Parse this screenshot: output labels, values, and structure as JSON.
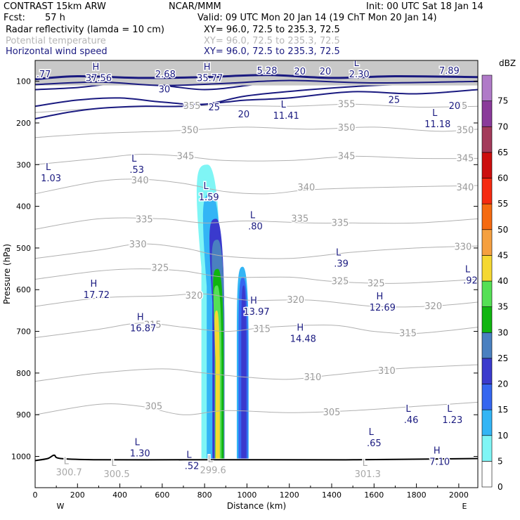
{
  "header": {
    "model": "CONTRAST 15km ARW",
    "center": "NCAR/MMM",
    "init": "Init: 00 UTC Sat 18 Jan 14",
    "fcst_label": "Fcst:",
    "fcst_value": "57 h",
    "valid": "Valid: 09 UTC Mon 20 Jan 14 (19 ChT Mon 20 Jan 14)",
    "fields": [
      {
        "name": "Radar reflectivity (lamda = 10 cm)",
        "xy": "XY=   96.0, 72.5 to 235.3, 72.5",
        "color": "#000000"
      },
      {
        "name": "Potential temperature",
        "xy": "XY=   96.0, 72.5 to 235.3, 72.5",
        "color": "#b5b5b5"
      },
      {
        "name": "Horizontal wind speed",
        "xy": "XY=   96.0, 72.5 to 235.3, 72.5",
        "color": "#1a1a80"
      }
    ]
  },
  "chart_data": {
    "type": "heatmap",
    "xlabel": "Distance (km)",
    "ylabel": "Pressure (hPa)",
    "xlim": [
      0,
      2090
    ],
    "ylim": [
      1075,
      50
    ],
    "x_ticks": [
      0,
      200,
      400,
      600,
      800,
      1000,
      1200,
      1400,
      1600,
      1800,
      2000
    ],
    "y_ticks": [
      100,
      200,
      300,
      400,
      500,
      600,
      700,
      800,
      900,
      1000
    ],
    "x_end_labels": {
      "left": "W",
      "right": "E"
    },
    "colorbar": {
      "units": "dBZ",
      "levels": [
        0,
        5,
        10,
        15,
        20,
        25,
        30,
        35,
        40,
        45,
        50,
        55,
        60,
        65,
        70,
        75
      ],
      "colors": [
        "#ffffff",
        "#7ff5f5",
        "#33b5f5",
        "#3566f0",
        "#3a3acd",
        "#4a80c0",
        "#10b510",
        "#55e055",
        "#f5d832",
        "#f5a040",
        "#f56a10",
        "#f52a10",
        "#cc0e0e",
        "#a33a5a",
        "#8a3a9a",
        "#b07ac8"
      ]
    },
    "theta_contours": [
      {
        "label": "305",
        "points": [
          [
            0,
            900
          ],
          [
            300,
            875
          ],
          [
            500,
            880
          ],
          [
            700,
            900
          ],
          [
            900,
            890
          ],
          [
            1200,
            895
          ],
          [
            1500,
            890
          ],
          [
            1800,
            880
          ],
          [
            2090,
            870
          ]
        ]
      },
      {
        "label": "310",
        "points": [
          [
            0,
            820
          ],
          [
            300,
            800
          ],
          [
            600,
            790
          ],
          [
            800,
            800
          ],
          [
            1000,
            810
          ],
          [
            1200,
            815
          ],
          [
            1400,
            805
          ],
          [
            1700,
            790
          ],
          [
            2090,
            780
          ]
        ]
      },
      {
        "label": "315",
        "points": [
          [
            0,
            715
          ],
          [
            300,
            695
          ],
          [
            500,
            680
          ],
          [
            700,
            690
          ],
          [
            900,
            700
          ],
          [
            1100,
            690
          ],
          [
            1400,
            685
          ],
          [
            1600,
            700
          ],
          [
            1800,
            705
          ],
          [
            2090,
            690
          ]
        ]
      },
      {
        "label": "320",
        "points": [
          [
            0,
            640
          ],
          [
            300,
            620
          ],
          [
            600,
            615
          ],
          [
            800,
            610
          ],
          [
            1000,
            625
          ],
          [
            1300,
            625
          ],
          [
            1600,
            640
          ],
          [
            1850,
            640
          ],
          [
            2090,
            630
          ]
        ]
      },
      {
        "label": "325",
        "points": [
          [
            0,
            575
          ],
          [
            300,
            555
          ],
          [
            500,
            550
          ],
          [
            700,
            555
          ],
          [
            900,
            570
          ],
          [
            1200,
            570
          ],
          [
            1400,
            580
          ],
          [
            1700,
            585
          ],
          [
            2090,
            575
          ]
        ]
      },
      {
        "label": "330",
        "points": [
          [
            0,
            525
          ],
          [
            300,
            505
          ],
          [
            500,
            490
          ],
          [
            700,
            500
          ],
          [
            900,
            520
          ],
          [
            1200,
            525
          ],
          [
            1500,
            510
          ],
          [
            1800,
            500
          ],
          [
            2090,
            495
          ]
        ]
      },
      {
        "label": "335",
        "points": [
          [
            0,
            455
          ],
          [
            300,
            430
          ],
          [
            600,
            430
          ],
          [
            800,
            440
          ],
          [
            1000,
            435
          ],
          [
            1300,
            440
          ],
          [
            1500,
            440
          ],
          [
            1800,
            440
          ],
          [
            2090,
            430
          ]
        ]
      },
      {
        "label": "340",
        "points": [
          [
            0,
            370
          ],
          [
            300,
            340
          ],
          [
            500,
            335
          ],
          [
            700,
            345
          ],
          [
            900,
            365
          ],
          [
            1100,
            370
          ],
          [
            1300,
            360
          ],
          [
            1600,
            355
          ],
          [
            2090,
            350
          ]
        ]
      },
      {
        "label": "345",
        "points": [
          [
            0,
            300
          ],
          [
            300,
            285
          ],
          [
            500,
            275
          ],
          [
            700,
            280
          ],
          [
            900,
            290
          ],
          [
            1200,
            290
          ],
          [
            1500,
            280
          ],
          [
            1800,
            285
          ],
          [
            2090,
            285
          ]
        ]
      },
      {
        "label": "350",
        "points": [
          [
            0,
            235
          ],
          [
            300,
            225
          ],
          [
            600,
            220
          ],
          [
            800,
            215
          ],
          [
            1000,
            210
          ],
          [
            1300,
            215
          ],
          [
            1600,
            210
          ],
          [
            1900,
            220
          ],
          [
            2090,
            215
          ]
        ]
      },
      {
        "label": "355",
        "points": [
          [
            0,
            175
          ],
          [
            300,
            165
          ],
          [
            600,
            160
          ],
          [
            900,
            158
          ],
          [
            1200,
            160
          ],
          [
            1500,
            155
          ],
          [
            1800,
            162
          ],
          [
            2090,
            160
          ]
        ]
      }
    ],
    "theta_labels": [
      {
        "text": "305",
        "x": 560,
        "y": 880
      },
      {
        "text": "305",
        "x": 1400,
        "y": 895
      },
      {
        "text": "310",
        "x": 1310,
        "y": 810
      },
      {
        "text": "310",
        "x": 1660,
        "y": 795
      },
      {
        "text": "315",
        "x": 555,
        "y": 685
      },
      {
        "text": "315",
        "x": 1070,
        "y": 695
      },
      {
        "text": "315",
        "x": 1760,
        "y": 705
      },
      {
        "text": "320",
        "x": 750,
        "y": 615
      },
      {
        "text": "320",
        "x": 1230,
        "y": 625
      },
      {
        "text": "320",
        "x": 1880,
        "y": 640
      },
      {
        "text": "325",
        "x": 590,
        "y": 548
      },
      {
        "text": "325",
        "x": 1440,
        "y": 580
      },
      {
        "text": "325",
        "x": 1610,
        "y": 585
      },
      {
        "text": "330",
        "x": 485,
        "y": 492
      },
      {
        "text": "330",
        "x": 2020,
        "y": 498
      },
      {
        "text": "335",
        "x": 515,
        "y": 432
      },
      {
        "text": "335",
        "x": 1250,
        "y": 430
      },
      {
        "text": "335",
        "x": 1440,
        "y": 440
      },
      {
        "text": "340",
        "x": 495,
        "y": 338
      },
      {
        "text": "340",
        "x": 1280,
        "y": 355
      },
      {
        "text": "340",
        "x": 2030,
        "y": 355
      },
      {
        "text": "345",
        "x": 710,
        "y": 280
      },
      {
        "text": "345",
        "x": 1470,
        "y": 280
      },
      {
        "text": "345",
        "x": 2030,
        "y": 285
      },
      {
        "text": "350",
        "x": 730,
        "y": 218
      },
      {
        "text": "350",
        "x": 1470,
        "y": 212
      },
      {
        "text": "350",
        "x": 2030,
        "y": 218
      },
      {
        "text": "355",
        "x": 740,
        "y": 160
      },
      {
        "text": "355",
        "x": 1470,
        "y": 155
      },
      {
        "text": "355",
        "x": 2000,
        "y": 160
      }
    ],
    "wind_contours": [
      {
        "label": "20",
        "points": [
          [
            0,
            190
          ],
          [
            150,
            175
          ],
          [
            300,
            165
          ],
          [
            500,
            160
          ],
          [
            700,
            160
          ],
          [
            900,
            150
          ],
          [
            1000,
            145
          ],
          [
            1200,
            140
          ],
          [
            1500,
            125
          ],
          [
            1800,
            130
          ],
          [
            2090,
            120
          ]
        ]
      },
      {
        "label": "25",
        "points": [
          [
            0,
            160
          ],
          [
            200,
            145
          ],
          [
            400,
            140
          ],
          [
            600,
            150
          ],
          [
            800,
            155
          ],
          [
            1000,
            135
          ],
          [
            1300,
            120
          ],
          [
            1600,
            110
          ],
          [
            1900,
            105
          ],
          [
            2090,
            100
          ]
        ]
      },
      {
        "label": "30",
        "points": [
          [
            0,
            120
          ],
          [
            200,
            115
          ],
          [
            400,
            105
          ],
          [
            600,
            110
          ],
          [
            800,
            120
          ],
          [
            1000,
            110
          ],
          [
            1200,
            95
          ],
          [
            1500,
            90
          ],
          [
            1800,
            85
          ],
          [
            2090,
            80
          ]
        ]
      }
    ],
    "wind_labels": [
      {
        "text": "20",
        "x": 985,
        "y": 180
      },
      {
        "text": "25",
        "x": 845,
        "y": 163
      },
      {
        "text": "25",
        "x": 1695,
        "y": 145
      },
      {
        "text": "20",
        "x": 1980,
        "y": 160
      },
      {
        "text": "30",
        "x": 610,
        "y": 120
      },
      {
        "text": "20",
        "x": 1250,
        "y": 77
      },
      {
        "text": "20",
        "x": 1370,
        "y": 77
      }
    ],
    "extrema": [
      {
        "kind": "L",
        "value": "1.03",
        "x": 75,
        "y": 330,
        "color": "blue"
      },
      {
        "kind": "L",
        "value": ".53",
        "x": 480,
        "y": 310,
        "color": "blue"
      },
      {
        "kind": "L",
        "value": "1.59",
        "x": 820,
        "y": 375,
        "color": "blue"
      },
      {
        "kind": "L",
        "value": ".80",
        "x": 1040,
        "y": 445,
        "color": "blue"
      },
      {
        "kind": "L",
        "value": ".39",
        "x": 1445,
        "y": 535,
        "color": "blue"
      },
      {
        "kind": "L",
        "value": ".92",
        "x": 2055,
        "y": 575,
        "color": "blue"
      },
      {
        "kind": "L",
        "value": "11.41",
        "x": 1185,
        "y": 180,
        "color": "blue"
      },
      {
        "kind": "L",
        "value": "11.18",
        "x": 1900,
        "y": 200,
        "color": "blue"
      },
      {
        "kind": "H",
        "value": "17.72",
        "x": 290,
        "y": 610,
        "color": "blue"
      },
      {
        "kind": "H",
        "value": "16.87",
        "x": 510,
        "y": 690,
        "color": "blue"
      },
      {
        "kind": "H",
        "value": "13.97",
        "x": 1045,
        "y": 650,
        "color": "blue"
      },
      {
        "kind": "H",
        "value": "12.69",
        "x": 1640,
        "y": 640,
        "color": "blue"
      },
      {
        "kind": "H",
        "value": "14.48",
        "x": 1265,
        "y": 715,
        "color": "blue"
      },
      {
        "kind": "L",
        "value": ".46",
        "x": 1775,
        "y": 910,
        "color": "blue"
      },
      {
        "kind": "L",
        "value": "1.23",
        "x": 1970,
        "y": 910,
        "color": "blue"
      },
      {
        "kind": "L",
        "value": ".65",
        "x": 1600,
        "y": 965,
        "color": "blue"
      },
      {
        "kind": "L",
        "value": "1.30",
        "x": 495,
        "y": 990,
        "color": "blue"
      },
      {
        "kind": "L",
        "value": ".52",
        "x": 740,
        "y": 1020,
        "color": "blue"
      },
      {
        "kind": "H",
        "value": "7.10",
        "x": 1910,
        "y": 1010,
        "color": "blue"
      },
      {
        "kind": "H",
        "value": "37.56",
        "x": 300,
        "y": 90,
        "color": "blue"
      },
      {
        "kind": "H",
        "value": "35.77",
        "x": 825,
        "y": 90,
        "color": "blue"
      },
      {
        "kind": "",
        "value": ".77",
        "x": 40,
        "y": 80,
        "color": "blue"
      },
      {
        "kind": "",
        "value": "2.68",
        "x": 615,
        "y": 80,
        "color": "blue"
      },
      {
        "kind": "",
        "value": "5.28",
        "x": 1095,
        "y": 72,
        "color": "blue"
      },
      {
        "kind": "L",
        "value": "2.30",
        "x": 1530,
        "y": 80,
        "color": "blue"
      },
      {
        "kind": "",
        "value": "7.89",
        "x": 1955,
        "y": 72,
        "color": "blue"
      },
      {
        "kind": "L",
        "value": "300.7",
        "x": 160,
        "y": 1035,
        "color": "gray"
      },
      {
        "kind": "L",
        "value": "300.5",
        "x": 385,
        "y": 1040,
        "color": "gray"
      },
      {
        "kind": "L",
        "value": "299.6",
        "x": 840,
        "y": 1030,
        "color": "gray"
      },
      {
        "kind": "L",
        "value": "301.3",
        "x": 1570,
        "y": 1040,
        "color": "gray"
      }
    ],
    "reflectivity_cells": [
      {
        "name": "cell-west",
        "level": 5,
        "center_x": 830,
        "half_width": 45,
        "top": 300,
        "bottom": 1005
      },
      {
        "name": "cell-west",
        "level": 10,
        "center_x": 845,
        "half_width": 35,
        "top": 370,
        "bottom": 1005
      },
      {
        "name": "cell-west",
        "level": 20,
        "center_x": 865,
        "half_width": 28,
        "top": 430,
        "bottom": 1005
      },
      {
        "name": "cell-west",
        "level": 25,
        "center_x": 870,
        "half_width": 24,
        "top": 480,
        "bottom": 1005
      },
      {
        "name": "cell-west",
        "level": 30,
        "center_x": 870,
        "half_width": 20,
        "top": 550,
        "bottom": 1005
      },
      {
        "name": "cell-west",
        "level": 35,
        "center_x": 865,
        "half_width": 15,
        "top": 590,
        "bottom": 1005
      },
      {
        "name": "cell-west",
        "level": 40,
        "center_x": 862,
        "half_width": 10,
        "top": 650,
        "bottom": 1005
      },
      {
        "name": "cell-east",
        "level": 10,
        "center_x": 980,
        "half_width": 28,
        "top": 545,
        "bottom": 1005
      },
      {
        "name": "cell-east",
        "level": 15,
        "center_x": 982,
        "half_width": 22,
        "top": 570,
        "bottom": 1005
      },
      {
        "name": "cell-east",
        "level": 20,
        "center_x": 985,
        "half_width": 12,
        "top": 590,
        "bottom": 1005
      }
    ]
  }
}
